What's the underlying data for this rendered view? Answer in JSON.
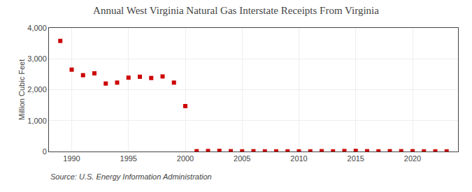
{
  "chart_data": {
    "type": "scatter",
    "title": "Annual West Virginia Natural Gas Interstate Receipts From Virginia",
    "ylabel": "Million Cubic Feet",
    "annotations": [
      "Source: U.S. Energy Information Administration"
    ],
    "x": [
      1989,
      1990,
      1991,
      1992,
      1993,
      1994,
      1995,
      1996,
      1997,
      1998,
      1999,
      2000,
      2001,
      2002,
      2003,
      2004,
      2005,
      2006,
      2007,
      2008,
      2009,
      2010,
      2011,
      2012,
      2013,
      2014,
      2015,
      2016,
      2017,
      2018,
      2019,
      2020,
      2021,
      2022,
      2023
    ],
    "values": [
      3580,
      2650,
      2470,
      2530,
      2200,
      2230,
      2390,
      2420,
      2380,
      2430,
      2230,
      1470,
      10,
      15,
      20,
      10,
      5,
      10,
      5,
      5,
      5,
      5,
      5,
      10,
      5,
      15,
      20,
      10,
      5,
      10,
      10,
      10,
      5,
      5,
      5
    ],
    "color": "#cc0000",
    "marker": "square",
    "xlim": [
      1988,
      2024
    ],
    "xticks": [
      1990,
      1995,
      2000,
      2005,
      2010,
      2015,
      2020
    ],
    "ylim": [
      0,
      4000
    ],
    "yticks": [
      0,
      {
        "value": 1000,
        "label": "1,000"
      },
      {
        "value": 2000,
        "label": "2,000"
      },
      {
        "value": 3000,
        "label": "3,000"
      },
      {
        "value": 4000,
        "label": "4,000"
      }
    ],
    "grid": true
  }
}
